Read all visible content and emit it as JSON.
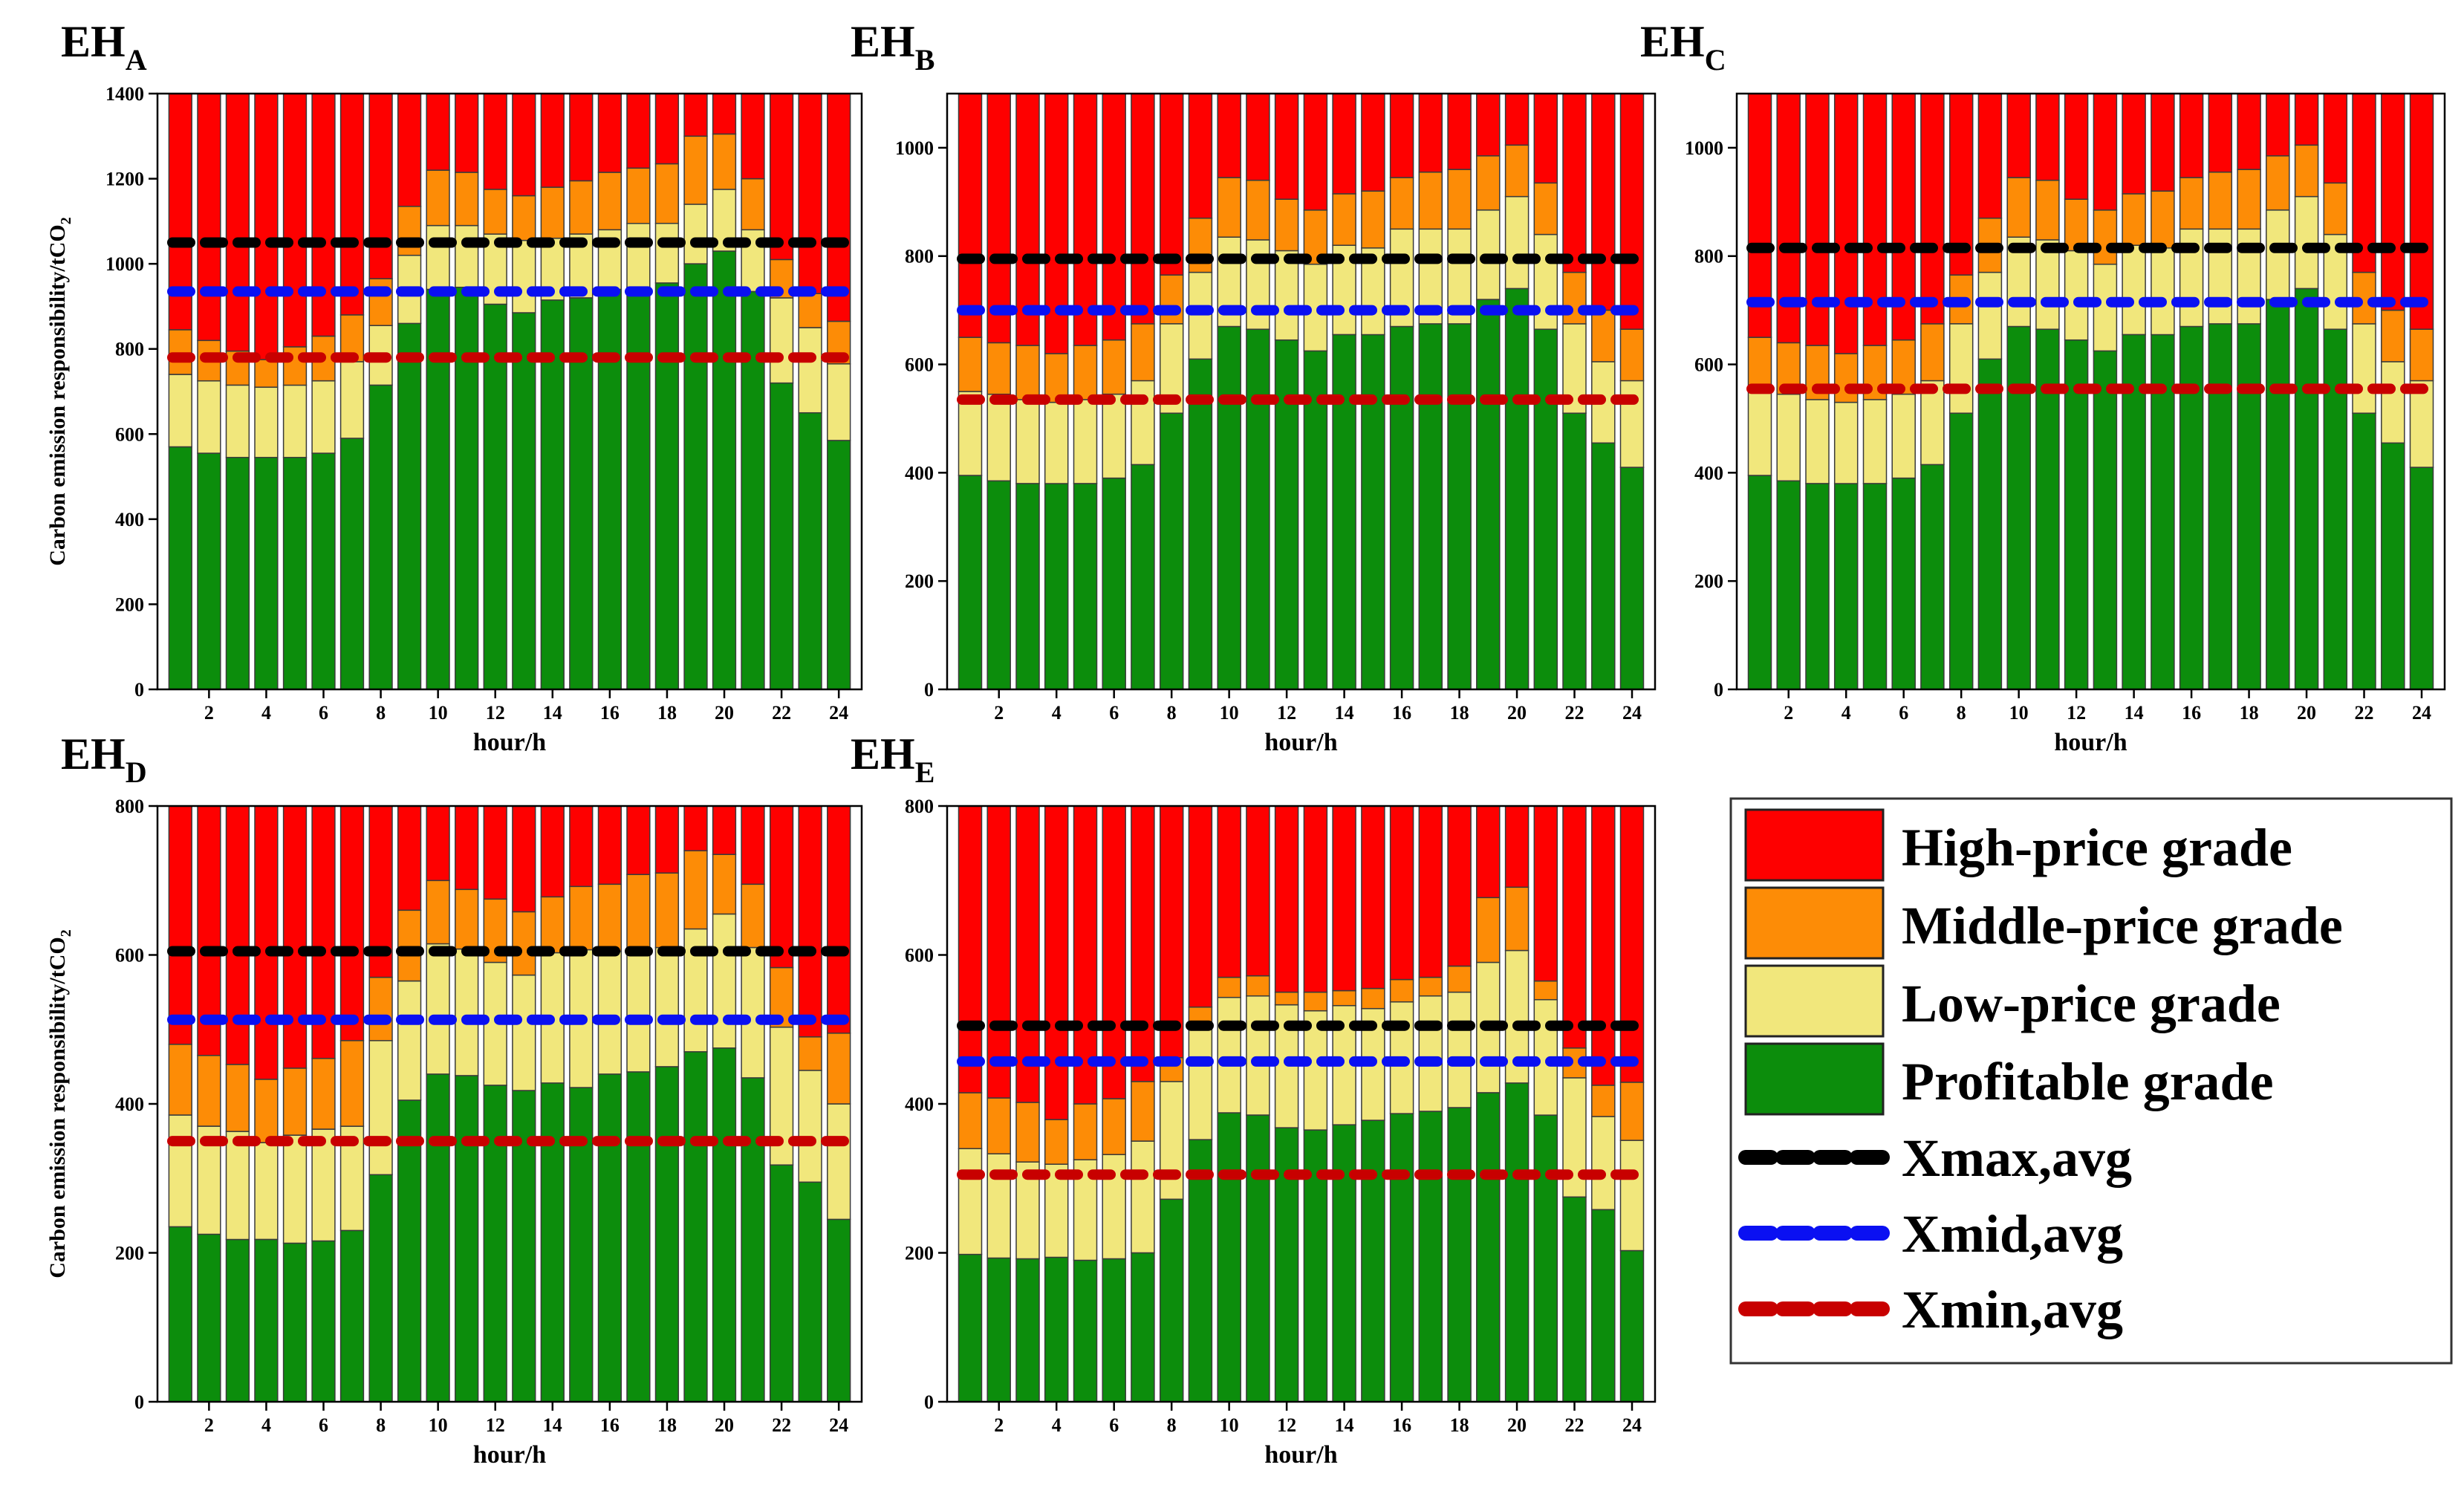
{
  "colors": {
    "profitable": "#0c8d0c",
    "low": "#f1e77c",
    "middle": "#fd8c06",
    "high": "#fe0000",
    "xmax": "#000000",
    "xmid": "#0a10f2",
    "xmin": "#c80000"
  },
  "legend": {
    "high": "High-price grade",
    "middle": "Middle-price grade",
    "low": "Low-price grade",
    "profitable": "Profitable grade",
    "xmax": "Xmax,avg",
    "xmid": "Xmid,avg",
    "xmin": "Xmin,avg"
  },
  "chart_data": [
    {
      "type": "bar",
      "stacked": true,
      "title_main": "EH",
      "title_sub": "A",
      "xlabel": "hour/h",
      "ylabel": "Carbon emission responsibility/tCO",
      "ylabel_sub": "2",
      "x": [
        1,
        2,
        3,
        4,
        5,
        6,
        7,
        8,
        9,
        10,
        11,
        12,
        13,
        14,
        15,
        16,
        17,
        18,
        19,
        20,
        21,
        22,
        23,
        24
      ],
      "xticks": [
        "2",
        "4",
        "6",
        "8",
        "10",
        "12",
        "14",
        "16",
        "18",
        "20",
        "22",
        "24"
      ],
      "ylim": [
        0,
        1400
      ],
      "yticks": [
        "0",
        "200",
        "400",
        "600",
        "800",
        "1000",
        "1200",
        "1400"
      ],
      "series": [
        {
          "name": "Profitable grade",
          "values": [
            570,
            555,
            545,
            545,
            545,
            555,
            590,
            715,
            860,
            940,
            945,
            905,
            885,
            915,
            920,
            940,
            945,
            955,
            1000,
            1030,
            935,
            720,
            650,
            585
          ]
        },
        {
          "name": "Low-price grade",
          "values": [
            170,
            170,
            170,
            165,
            170,
            170,
            180,
            140,
            160,
            150,
            145,
            165,
            170,
            145,
            150,
            140,
            150,
            140,
            140,
            145,
            145,
            200,
            200,
            180
          ]
        },
        {
          "name": "Middle-price grade",
          "values": [
            105,
            95,
            80,
            65,
            90,
            105,
            110,
            110,
            115,
            130,
            125,
            105,
            105,
            120,
            125,
            135,
            130,
            140,
            160,
            130,
            120,
            90,
            80,
            100
          ]
        },
        {
          "name": "High-price grade",
          "values": [
            555,
            580,
            605,
            625,
            595,
            570,
            520,
            435,
            265,
            180,
            185,
            225,
            240,
            220,
            205,
            185,
            175,
            165,
            100,
            95,
            200,
            390,
            470,
            535
          ]
        }
      ],
      "lines": {
        "xmax": 1050,
        "xmid": 935,
        "xmin": 780
      }
    },
    {
      "type": "bar",
      "stacked": true,
      "title_main": "EH",
      "title_sub": "B",
      "xlabel": "hour/h",
      "ylabel": "",
      "ylabel_sub": "",
      "x": [
        1,
        2,
        3,
        4,
        5,
        6,
        7,
        8,
        9,
        10,
        11,
        12,
        13,
        14,
        15,
        16,
        17,
        18,
        19,
        20,
        21,
        22,
        23,
        24
      ],
      "xticks": [
        "2",
        "4",
        "6",
        "8",
        "10",
        "12",
        "14",
        "16",
        "18",
        "20",
        "22",
        "24"
      ],
      "ylim": [
        0,
        1100
      ],
      "yticks": [
        "0",
        "200",
        "400",
        "600",
        "800",
        "1000"
      ],
      "series": [
        {
          "name": "Profitable grade",
          "values": [
            395,
            385,
            380,
            380,
            380,
            390,
            415,
            510,
            610,
            670,
            665,
            645,
            625,
            655,
            655,
            670,
            675,
            675,
            720,
            740,
            665,
            510,
            455,
            410
          ]
        },
        {
          "name": "Low-price grade",
          "values": [
            155,
            160,
            155,
            150,
            155,
            155,
            155,
            165,
            160,
            165,
            165,
            165,
            160,
            165,
            160,
            180,
            175,
            175,
            165,
            170,
            175,
            165,
            150,
            160
          ]
        },
        {
          "name": "Middle-price grade",
          "values": [
            100,
            95,
            100,
            90,
            100,
            100,
            105,
            90,
            100,
            110,
            110,
            95,
            100,
            95,
            105,
            95,
            105,
            110,
            100,
            95,
            95,
            95,
            95,
            95
          ]
        },
        {
          "name": "High-price grade",
          "values": [
            450,
            460,
            465,
            480,
            465,
            455,
            425,
            335,
            230,
            155,
            160,
            195,
            215,
            185,
            180,
            155,
            145,
            140,
            115,
            95,
            165,
            330,
            400,
            435
          ]
        }
      ],
      "lines": {
        "xmax": 795,
        "xmid": 700,
        "xmin": 535
      }
    },
    {
      "type": "bar",
      "stacked": true,
      "title_main": "EH",
      "title_sub": "C",
      "xlabel": "hour/h",
      "ylabel": "",
      "ylabel_sub": "",
      "x": [
        1,
        2,
        3,
        4,
        5,
        6,
        7,
        8,
        9,
        10,
        11,
        12,
        13,
        14,
        15,
        16,
        17,
        18,
        19,
        20,
        21,
        22,
        23,
        24
      ],
      "xticks": [
        "2",
        "4",
        "6",
        "8",
        "10",
        "12",
        "14",
        "16",
        "18",
        "20",
        "22",
        "24"
      ],
      "ylim": [
        0,
        1100
      ],
      "yticks": [
        "0",
        "200",
        "400",
        "600",
        "800",
        "1000"
      ],
      "series": [
        {
          "name": "Profitable grade",
          "values": [
            395,
            385,
            380,
            380,
            380,
            390,
            415,
            510,
            610,
            670,
            665,
            645,
            625,
            655,
            655,
            670,
            675,
            675,
            720,
            740,
            665,
            510,
            455,
            410
          ]
        },
        {
          "name": "Low-price grade",
          "values": [
            155,
            160,
            155,
            150,
            155,
            155,
            155,
            165,
            160,
            165,
            165,
            165,
            160,
            165,
            160,
            180,
            175,
            175,
            165,
            170,
            175,
            165,
            150,
            160
          ]
        },
        {
          "name": "Middle-price grade",
          "values": [
            100,
            95,
            100,
            90,
            100,
            100,
            105,
            90,
            100,
            110,
            110,
            95,
            100,
            95,
            105,
            95,
            105,
            110,
            100,
            95,
            95,
            95,
            95,
            95
          ]
        },
        {
          "name": "High-price grade",
          "values": [
            450,
            460,
            465,
            480,
            465,
            455,
            425,
            335,
            230,
            155,
            160,
            195,
            215,
            185,
            180,
            155,
            145,
            140,
            115,
            95,
            165,
            330,
            400,
            435
          ]
        }
      ],
      "lines": {
        "xmax": 815,
        "xmid": 715,
        "xmin": 555
      }
    },
    {
      "type": "bar",
      "stacked": true,
      "title_main": "EH",
      "title_sub": "D",
      "xlabel": "hour/h",
      "ylabel": "Carbon emission responsibility/tCO",
      "ylabel_sub": "2",
      "x": [
        1,
        2,
        3,
        4,
        5,
        6,
        7,
        8,
        9,
        10,
        11,
        12,
        13,
        14,
        15,
        16,
        17,
        18,
        19,
        20,
        21,
        22,
        23,
        24
      ],
      "xticks": [
        "2",
        "4",
        "6",
        "8",
        "10",
        "12",
        "14",
        "16",
        "18",
        "20",
        "22",
        "24"
      ],
      "ylim": [
        0,
        800
      ],
      "yticks": [
        "0",
        "200",
        "400",
        "600",
        "800"
      ],
      "series": [
        {
          "name": "Profitable grade",
          "values": [
            235,
            225,
            218,
            218,
            213,
            216,
            230,
            305,
            405,
            440,
            438,
            425,
            418,
            428,
            422,
            440,
            443,
            450,
            470,
            475,
            435,
            318,
            295,
            245
          ]
        },
        {
          "name": "Low-price grade",
          "values": [
            150,
            145,
            145,
            130,
            145,
            150,
            140,
            180,
            160,
            175,
            170,
            165,
            155,
            175,
            185,
            165,
            160,
            160,
            165,
            180,
            175,
            185,
            150,
            155
          ]
        },
        {
          "name": "Middle-price grade",
          "values": [
            95,
            95,
            90,
            85,
            90,
            95,
            115,
            85,
            95,
            85,
            80,
            85,
            85,
            75,
            85,
            90,
            105,
            100,
            105,
            80,
            85,
            80,
            45,
            95
          ]
        },
        {
          "name": "High-price grade",
          "values": [
            320,
            335,
            347,
            367,
            352,
            339,
            315,
            230,
            140,
            100,
            112,
            125,
            142,
            122,
            108,
            105,
            92,
            90,
            60,
            65,
            105,
            217,
            310,
            305
          ]
        }
      ],
      "lines": {
        "xmax": 605,
        "xmid": 513,
        "xmin": 350
      }
    },
    {
      "type": "bar",
      "stacked": true,
      "title_main": "EH",
      "title_sub": "E",
      "xlabel": "hour/h",
      "ylabel": "",
      "ylabel_sub": "",
      "x": [
        1,
        2,
        3,
        4,
        5,
        6,
        7,
        8,
        9,
        10,
        11,
        12,
        13,
        14,
        15,
        16,
        17,
        18,
        19,
        20,
        21,
        22,
        23,
        24
      ],
      "xticks": [
        "2",
        "4",
        "6",
        "8",
        "10",
        "12",
        "14",
        "16",
        "18",
        "20",
        "22",
        "24"
      ],
      "ylim": [
        0,
        800
      ],
      "yticks": [
        "0",
        "200",
        "400",
        "600",
        "800"
      ],
      "series": [
        {
          "name": "Profitable grade",
          "values": [
            198,
            193,
            192,
            194,
            190,
            192,
            200,
            272,
            352,
            388,
            385,
            368,
            365,
            372,
            378,
            387,
            390,
            395,
            415,
            428,
            385,
            275,
            258,
            203
          ]
        },
        {
          "name": "Low-price grade",
          "values": [
            142,
            140,
            130,
            125,
            135,
            140,
            150,
            158,
            155,
            155,
            160,
            165,
            160,
            160,
            150,
            150,
            155,
            155,
            175,
            178,
            155,
            160,
            125,
            148
          ]
        },
        {
          "name": "Middle-price grade",
          "values": [
            75,
            75,
            80,
            60,
            75,
            75,
            80,
            32,
            23,
            27,
            27,
            17,
            25,
            20,
            27,
            30,
            25,
            35,
            87,
            85,
            25,
            40,
            42,
            78
          ]
        },
        {
          "name": "High-price grade",
          "values": [
            385,
            392,
            398,
            421,
            400,
            393,
            370,
            338,
            270,
            230,
            228,
            250,
            250,
            248,
            245,
            233,
            230,
            215,
            123,
            109,
            235,
            325,
            375,
            371
          ]
        }
      ],
      "lines": {
        "xmax": 505,
        "xmid": 457,
        "xmin": 305
      }
    }
  ]
}
